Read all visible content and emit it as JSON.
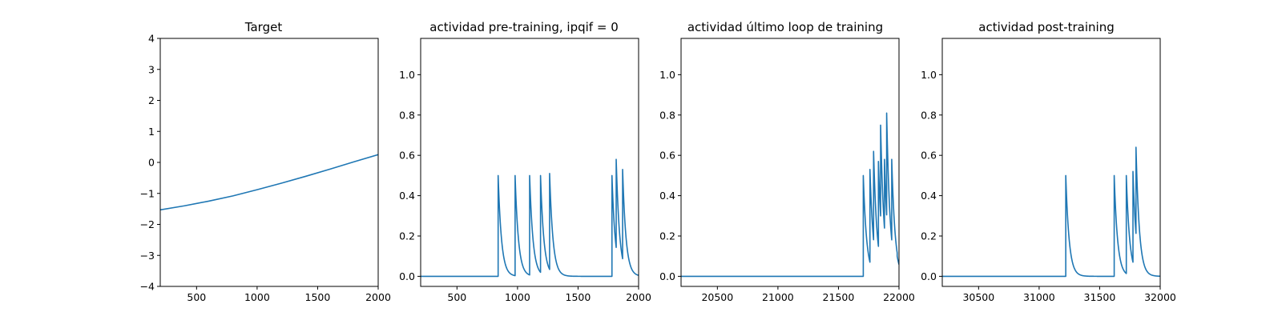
{
  "chart_data": [
    {
      "type": "line",
      "title": "Target",
      "xlim": [
        200,
        2000
      ],
      "ylim": [
        -4,
        4
      ],
      "xticks": [
        500,
        1000,
        1500,
        2000
      ],
      "yticks": [
        -4,
        -3,
        -2,
        -1,
        0,
        1,
        2,
        3,
        4
      ],
      "xtick_labels": [
        "500",
        "1000",
        "1500",
        "2000"
      ],
      "ytick_labels": [
        "−4",
        "−3",
        "−2",
        "−1",
        "0",
        "1",
        "2",
        "3",
        "4"
      ],
      "color": "#1f77b4",
      "grid": false,
      "series": [
        {
          "x": [
            200,
            400,
            600,
            800,
            1000,
            1200,
            1400,
            1600,
            1800,
            2000
          ],
          "y": [
            -1.53,
            -1.4,
            -1.25,
            -1.08,
            -0.88,
            -0.67,
            -0.45,
            -0.22,
            0.02,
            0.25
          ]
        }
      ]
    },
    {
      "type": "line",
      "title": "actividad pre-training, ipqif = 0",
      "xlim": [
        200,
        2000
      ],
      "ylim": [
        -0.05,
        1.18
      ],
      "xticks": [
        500,
        1000,
        1500,
        2000
      ],
      "yticks": [
        0.0,
        0.2,
        0.4,
        0.6,
        0.8,
        1.0
      ],
      "xtick_labels": [
        "500",
        "1000",
        "1500",
        "2000"
      ],
      "ytick_labels": [
        "0.0",
        "0.2",
        "0.4",
        "0.6",
        "0.8",
        "1.0"
      ],
      "color": "#1f77b4",
      "grid": false,
      "decay": 28,
      "spikes": [
        {
          "t": 840,
          "peak": 0.5
        },
        {
          "t": 980,
          "peak": 0.5
        },
        {
          "t": 1100,
          "peak": 0.5
        },
        {
          "t": 1190,
          "peak": 0.5
        },
        {
          "t": 1265,
          "peak": 0.51
        },
        {
          "t": 1780,
          "peak": 0.5
        },
        {
          "t": 1815,
          "peak": 0.58
        },
        {
          "t": 1868,
          "peak": 0.53
        }
      ]
    },
    {
      "type": "line",
      "title": "actividad último loop de training",
      "xlim": [
        20200,
        22000
      ],
      "ylim": [
        -0.05,
        1.18
      ],
      "xticks": [
        20500,
        21000,
        21500,
        22000
      ],
      "yticks": [
        0.0,
        0.2,
        0.4,
        0.6,
        0.8,
        1.0
      ],
      "xtick_labels": [
        "20500",
        "21000",
        "21500",
        "22000"
      ],
      "ytick_labels": [
        "0.0",
        "0.2",
        "0.4",
        "0.6",
        "0.8",
        "1.0"
      ],
      "color": "#1f77b4",
      "grid": false,
      "decay": 28,
      "spikes": [
        {
          "t": 21705,
          "peak": 0.5
        },
        {
          "t": 21760,
          "peak": 0.53
        },
        {
          "t": 21790,
          "peak": 0.62
        },
        {
          "t": 21830,
          "peak": 0.57
        },
        {
          "t": 21848,
          "peak": 0.75
        },
        {
          "t": 21880,
          "peak": 0.58
        },
        {
          "t": 21898,
          "peak": 0.81
        },
        {
          "t": 21940,
          "peak": 0.58
        },
        {
          "t": 21985,
          "peak": 0.1
        }
      ]
    },
    {
      "type": "line",
      "title": "actividad post-training",
      "xlim": [
        30200,
        32000
      ],
      "ylim": [
        -0.05,
        1.18
      ],
      "xticks": [
        30500,
        31000,
        31500,
        32000
      ],
      "yticks": [
        0.0,
        0.2,
        0.4,
        0.6,
        0.8,
        1.0
      ],
      "xtick_labels": [
        "30500",
        "31000",
        "31500",
        "32000"
      ],
      "ytick_labels": [
        "0.0",
        "0.2",
        "0.4",
        "0.6",
        "0.8",
        "1.0"
      ],
      "color": "#1f77b4",
      "grid": false,
      "decay": 28,
      "spikes": [
        {
          "t": 31220,
          "peak": 0.5
        },
        {
          "t": 31620,
          "peak": 0.5
        },
        {
          "t": 31720,
          "peak": 0.5
        },
        {
          "t": 31775,
          "peak": 0.52
        },
        {
          "t": 31800,
          "peak": 0.64
        }
      ]
    }
  ]
}
